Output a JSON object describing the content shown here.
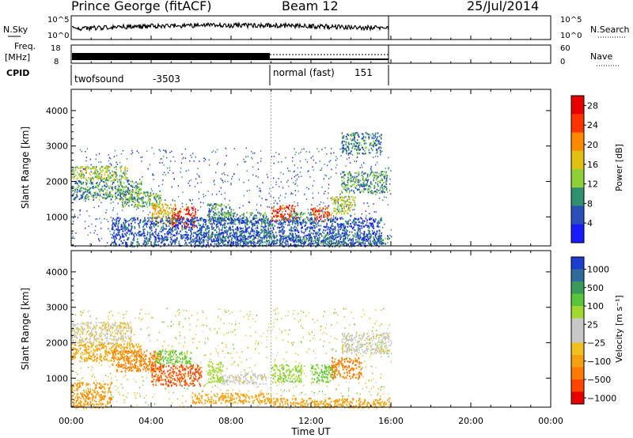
{
  "header": {
    "station": "Prince George (fitACF)",
    "beam": "Beam 12",
    "date": "25/Jul/2014"
  },
  "nsky_panel": {
    "label": "N.Sky",
    "right_label": "N.Search",
    "ticks": [
      "10^5",
      "10^0"
    ],
    "right_ticks": [
      "10^5",
      "10^0"
    ]
  },
  "freq_panel": {
    "label_line1": "Freq.",
    "label_line2": "[MHz]",
    "right_label": "Nave",
    "ticks": [
      "18",
      "8"
    ],
    "right_ticks": [
      "60",
      "0"
    ]
  },
  "cpid_panel": {
    "label": "CPID",
    "segments": [
      {
        "name": "twofsound",
        "id": "-3503",
        "start_hour": 0,
        "end_hour": 10
      },
      {
        "name": "normal (fast)",
        "id": "151",
        "start_hour": 10,
        "end_hour": 16
      }
    ]
  },
  "chart_data": [
    {
      "type": "heatmap",
      "panel": "power",
      "ylabel": "Slant Range [km]",
      "xlabel": "",
      "ylim": [
        180,
        4600
      ],
      "xlim": [
        0,
        24
      ],
      "data_end_hour": 16,
      "yticks": [
        "1000",
        "2000",
        "3000",
        "4000"
      ],
      "colorbar": {
        "label": "Power [dB]",
        "ticks": [
          "4",
          "8",
          "12",
          "16",
          "20",
          "24",
          "28"
        ],
        "range": [
          0,
          30
        ],
        "colors": [
          "#1a1aff",
          "#2b4fb8",
          "#2f8f6f",
          "#8fd03a",
          "#e0c010",
          "#ff8a00",
          "#ff3300",
          "#e60000"
        ]
      },
      "regions": [
        {
          "t": [
            0.0,
            2.8
          ],
          "r": [
            2050,
            2450
          ],
          "level": 14
        },
        {
          "t": [
            0.0,
            3.5
          ],
          "r": [
            1500,
            2050
          ],
          "level": 9
        },
        {
          "t": [
            2.5,
            4.5
          ],
          "r": [
            1300,
            1750
          ],
          "level": 12
        },
        {
          "t": [
            4.0,
            5.2
          ],
          "r": [
            800,
            1400
          ],
          "level": 17
        },
        {
          "t": [
            5.0,
            6.2
          ],
          "r": [
            700,
            1300
          ],
          "level": 26
        },
        {
          "t": [
            6.8,
            8.0
          ],
          "r": [
            800,
            1400
          ],
          "level": 9
        },
        {
          "t": [
            7.5,
            9.8
          ],
          "r": [
            850,
            1150
          ],
          "level": 10
        },
        {
          "t": [
            6.0,
            10.0
          ],
          "r": [
            300,
            600
          ],
          "level": 8
        },
        {
          "t": [
            10.0,
            11.3
          ],
          "r": [
            900,
            1350
          ],
          "level": 25
        },
        {
          "t": [
            11.0,
            12.0
          ],
          "r": [
            850,
            1150
          ],
          "level": 10
        },
        {
          "t": [
            12.0,
            13.0
          ],
          "r": [
            900,
            1300
          ],
          "level": 24
        },
        {
          "t": [
            13.0,
            14.2
          ],
          "r": [
            1100,
            1600
          ],
          "level": 14
        },
        {
          "t": [
            13.5,
            15.8
          ],
          "r": [
            1700,
            2300
          ],
          "level": 10
        },
        {
          "t": [
            13.5,
            15.5
          ],
          "r": [
            2800,
            3400
          ],
          "level": 8
        },
        {
          "t": [
            10.0,
            16.0
          ],
          "r": [
            250,
            500
          ],
          "level": 8
        },
        {
          "t": [
            2.0,
            15.5
          ],
          "r": [
            180,
            1000
          ],
          "level": 6
        }
      ]
    },
    {
      "type": "heatmap",
      "panel": "velocity",
      "ylabel": "Slant Range [km]",
      "xlabel": "Time UT",
      "ylim": [
        180,
        4600
      ],
      "xlim": [
        0,
        24
      ],
      "data_end_hour": 16,
      "yticks": [
        "1000",
        "2000",
        "3000",
        "4000"
      ],
      "xticks": [
        "00:00",
        "04:00",
        "08:00",
        "12:00",
        "16:00",
        "20:00",
        "00:00"
      ],
      "colorbar": {
        "label": "Velocity [m s⁻¹]",
        "ticks": [
          "1000",
          "500",
          "100",
          "25",
          "−25",
          "−100",
          "−500",
          "−1000"
        ],
        "range": [
          -1200,
          1200
        ],
        "colors": [
          "#1e3cd0",
          "#2e6a9a",
          "#3b9a5a",
          "#5ac43a",
          "#a0d830",
          "#c8c8c8",
          "#c8c8c8",
          "#f0c020",
          "#f5a010",
          "#ff7a00",
          "#ff4500",
          "#e60000"
        ]
      },
      "regions": [
        {
          "t": [
            0.0,
            3.0
          ],
          "r": [
            2000,
            2600
          ],
          "level": -20
        },
        {
          "t": [
            0.0,
            3.5
          ],
          "r": [
            1500,
            2000
          ],
          "level": -120
        },
        {
          "t": [
            2.0,
            4.5
          ],
          "r": [
            1200,
            1800
          ],
          "level": -300
        },
        {
          "t": [
            4.0,
            6.5
          ],
          "r": [
            800,
            1400
          ],
          "level": -600
        },
        {
          "t": [
            4.2,
            6.0
          ],
          "r": [
            1400,
            1800
          ],
          "level": 120
        },
        {
          "t": [
            6.8,
            7.6
          ],
          "r": [
            900,
            1500
          ],
          "level": 60
        },
        {
          "t": [
            7.5,
            9.8
          ],
          "r": [
            850,
            1150
          ],
          "level": 0
        },
        {
          "t": [
            6.0,
            10.0
          ],
          "r": [
            300,
            600
          ],
          "level": -150
        },
        {
          "t": [
            10.0,
            11.5
          ],
          "r": [
            900,
            1400
          ],
          "level": 80
        },
        {
          "t": [
            12.0,
            13.2
          ],
          "r": [
            900,
            1400
          ],
          "level": 110
        },
        {
          "t": [
            13.0,
            14.5
          ],
          "r": [
            1000,
            1600
          ],
          "level": -350
        },
        {
          "t": [
            13.5,
            16.0
          ],
          "r": [
            1700,
            2300
          ],
          "level": 0
        },
        {
          "t": [
            10.0,
            16.0
          ],
          "r": [
            180,
            450
          ],
          "level": -150
        },
        {
          "t": [
            0.0,
            2.0
          ],
          "r": [
            180,
            900
          ],
          "level": -200
        }
      ]
    }
  ]
}
